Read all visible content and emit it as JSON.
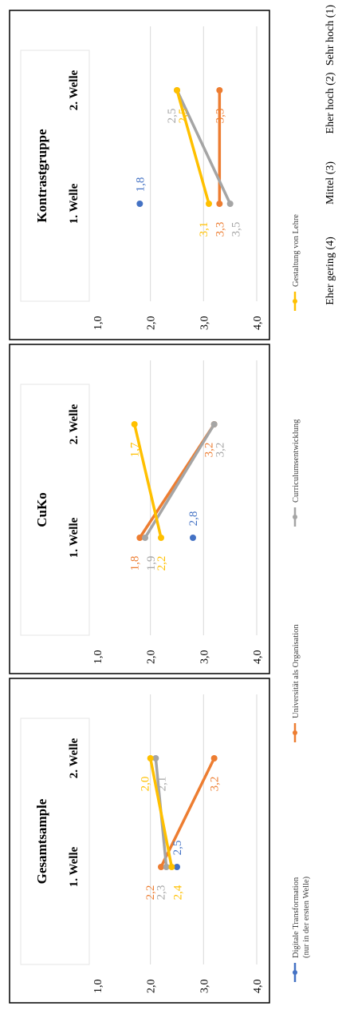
{
  "colors": {
    "digital": "#4472C4",
    "uni": "#ED7D31",
    "curr": "#A5A5A5",
    "lehre": "#FFC000",
    "grid": "#D9D9D9",
    "text": "#404040"
  },
  "scale_labels": [
    "Sehr hoch (1)",
    "Eher hoch (2)",
    "Mittel (3)",
    "Eher gering (4)"
  ],
  "legend": [
    {
      "key": "digital",
      "label": "Digitale Transformation",
      "sub": "(nur in der ersten Welle)"
    },
    {
      "key": "uni",
      "label": "Universität als Organisation",
      "sub": ""
    },
    {
      "key": "curr",
      "label": "Curriculumsentwicklung",
      "sub": ""
    },
    {
      "key": "lehre",
      "label": "Gestaltung von Lehre",
      "sub": ""
    }
  ],
  "chart_data": [
    {
      "type": "line",
      "title": "Gesamtsample",
      "categories": [
        "1. Welle",
        "2. Welle"
      ],
      "ylim": [
        1.0,
        4.0
      ],
      "yticks": [
        "1,0",
        "2,0",
        "3,0",
        "4,0"
      ],
      "series": [
        {
          "key": "digital",
          "values": [
            2.5,
            null
          ],
          "labels": [
            "2,5",
            ""
          ]
        },
        {
          "key": "uni",
          "values": [
            2.2,
            3.2
          ],
          "labels": [
            "2,2",
            "3,2"
          ]
        },
        {
          "key": "curr",
          "values": [
            2.3,
            2.1
          ],
          "labels": [
            "2,3",
            "2,1"
          ]
        },
        {
          "key": "lehre",
          "values": [
            2.4,
            2.0
          ],
          "labels": [
            "2,4",
            "2,0"
          ]
        }
      ]
    },
    {
      "type": "line",
      "title": "CuKo",
      "categories": [
        "1. Welle",
        "2. Welle"
      ],
      "ylim": [
        1.0,
        4.0
      ],
      "yticks": [
        "1,0",
        "2,0",
        "3,0",
        "4,0"
      ],
      "series": [
        {
          "key": "digital",
          "values": [
            2.8,
            null
          ],
          "labels": [
            "2,8",
            ""
          ]
        },
        {
          "key": "uni",
          "values": [
            1.8,
            3.2
          ],
          "labels": [
            "1,8",
            "3,2"
          ]
        },
        {
          "key": "curr",
          "values": [
            1.9,
            3.2
          ],
          "labels": [
            "1,9",
            "3,2"
          ]
        },
        {
          "key": "lehre",
          "values": [
            2.2,
            1.7
          ],
          "labels": [
            "2,2",
            "1,7"
          ]
        }
      ]
    },
    {
      "type": "line",
      "title": "Kontrastgruppe",
      "categories": [
        "1. Welle",
        "2. Welle"
      ],
      "ylim": [
        1.0,
        4.0
      ],
      "yticks": [
        "1,0",
        "2,0",
        "3,0",
        "4,0"
      ],
      "series": [
        {
          "key": "digital",
          "values": [
            1.8,
            null
          ],
          "labels": [
            "1,8",
            ""
          ]
        },
        {
          "key": "uni",
          "values": [
            3.3,
            3.3
          ],
          "labels": [
            "3,3",
            "3,3"
          ]
        },
        {
          "key": "curr",
          "values": [
            3.5,
            2.5
          ],
          "labels": [
            "3,5",
            "2,5"
          ]
        },
        {
          "key": "lehre",
          "values": [
            3.1,
            2.5
          ],
          "labels": [
            "3,1",
            "2,5"
          ]
        }
      ]
    }
  ]
}
